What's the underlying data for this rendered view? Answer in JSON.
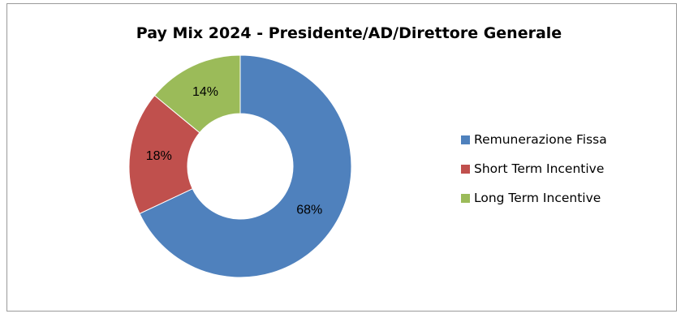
{
  "chart_data": {
    "type": "pie",
    "title": "Pay Mix 2024 - Presidente/AD/Direttore Generale",
    "categories": [
      "Remunerazione Fissa",
      "Short Term Incentive",
      "Long Term Incentive"
    ],
    "values": [
      68,
      18,
      14
    ],
    "value_labels": [
      "68%",
      "18%",
      "14%"
    ],
    "colors": [
      "#4f81bd",
      "#c0504d",
      "#9bbb59"
    ],
    "donut": true,
    "legend_position": "right"
  }
}
